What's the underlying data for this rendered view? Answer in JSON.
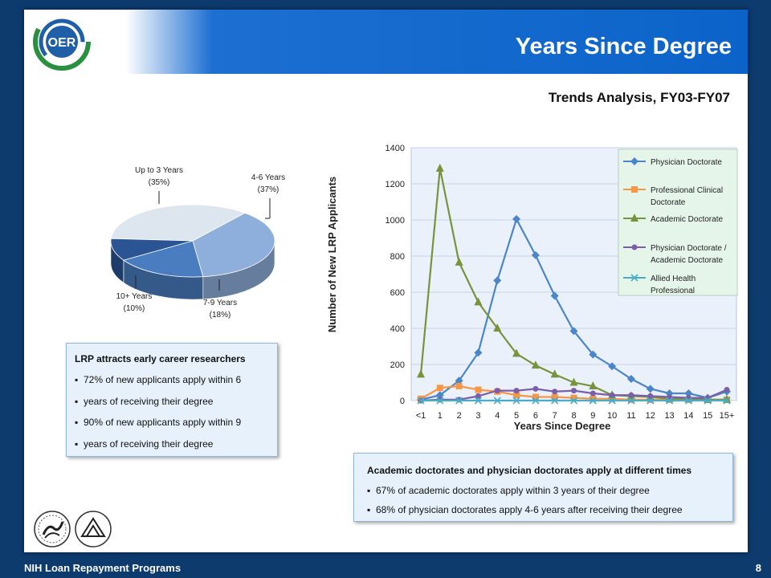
{
  "header": {
    "title": "Years Since Degree",
    "subtitle": "Trends Analysis, FY03-FY07",
    "logo_text": "OER"
  },
  "colors": {
    "header_blue": "#0b63c9",
    "background_navy": "#0d3b6e",
    "callout_fill": "#e6f1fb",
    "plot_fill": "#eaf1fb",
    "legend_fill": "#e6f5ea"
  },
  "pie_labels": [
    {
      "name": "Up to 3 Years",
      "pct": "(35%)"
    },
    {
      "name": "4-6 Years",
      "pct": "(37%)"
    },
    {
      "name": "7-9 Years",
      "pct": "(18%)"
    },
    {
      "name": "10+ Years",
      "pct": "(10%)"
    }
  ],
  "callout_left": {
    "heading": "LRP attracts early career researchers",
    "bullets": [
      "72% of new applicants apply within 6",
      "years of receiving their degree",
      "90% of new applicants apply within 9",
      "years of receiving their degree"
    ]
  },
  "callout_right": {
    "heading": "Academic doctorates and physician doctorates apply at different times",
    "bullets": [
      "67% of academic doctorates apply within 3 years of their degree",
      "68% of physician doctorates apply 4-6 years after receiving their degree"
    ]
  },
  "footer": {
    "text": "NIH Loan Repayment Programs",
    "page": "8"
  },
  "chart_data": [
    {
      "type": "pie",
      "style": "3d",
      "slices": [
        {
          "label": "Up to 3 Years",
          "value": 35,
          "color": "#dde6ee"
        },
        {
          "label": "4-6 Years",
          "value": 37,
          "color": "#8eaedb"
        },
        {
          "label": "7-9 Years",
          "value": 18,
          "color": "#4a7dc0"
        },
        {
          "label": "10+ Years",
          "value": 10,
          "color": "#2a5493"
        }
      ]
    },
    {
      "type": "line",
      "xlabel": "Years Since Degree",
      "ylabel": "Number of New LRP Applicants",
      "categories": [
        "<1",
        "1",
        "2",
        "3",
        "4",
        "5",
        "6",
        "7",
        "8",
        "9",
        "10",
        "11",
        "12",
        "13",
        "14",
        "15",
        "15+"
      ],
      "ylim": [
        0,
        1400
      ],
      "yticks": [
        0,
        200,
        400,
        600,
        800,
        1000,
        1200,
        1400
      ],
      "grid": true,
      "legend_position": "top-right",
      "series": [
        {
          "name": "Physician Doctorate",
          "color": "#4a86c8",
          "marker": "diamond",
          "values": [
            5,
            30,
            110,
            265,
            665,
            1005,
            805,
            580,
            385,
            255,
            190,
            120,
            65,
            40,
            40,
            15,
            50
          ]
        },
        {
          "name": "Professional Clinical Doctorate",
          "color": "#f79646",
          "marker": "square",
          "values": [
            10,
            70,
            80,
            60,
            50,
            30,
            20,
            20,
            15,
            10,
            10,
            5,
            5,
            5,
            5,
            5,
            5
          ]
        },
        {
          "name": "Academic Doctorate",
          "color": "#77933c",
          "marker": "triangle",
          "values": [
            145,
            1285,
            765,
            545,
            400,
            260,
            195,
            145,
            100,
            80,
            30,
            25,
            20,
            10,
            10,
            5,
            5
          ]
        },
        {
          "name": "Physician Doctorate / Academic Doctorate",
          "color": "#7b5ea7",
          "marker": "circle",
          "values": [
            0,
            5,
            5,
            25,
            55,
            55,
            65,
            50,
            55,
            40,
            30,
            30,
            25,
            20,
            15,
            15,
            60
          ]
        },
        {
          "name": "Allied Health Professional",
          "color": "#4bacc6",
          "marker": "x",
          "values": [
            0,
            0,
            0,
            0,
            0,
            0,
            0,
            0,
            0,
            0,
            0,
            0,
            0,
            0,
            0,
            0,
            0
          ]
        }
      ]
    }
  ]
}
